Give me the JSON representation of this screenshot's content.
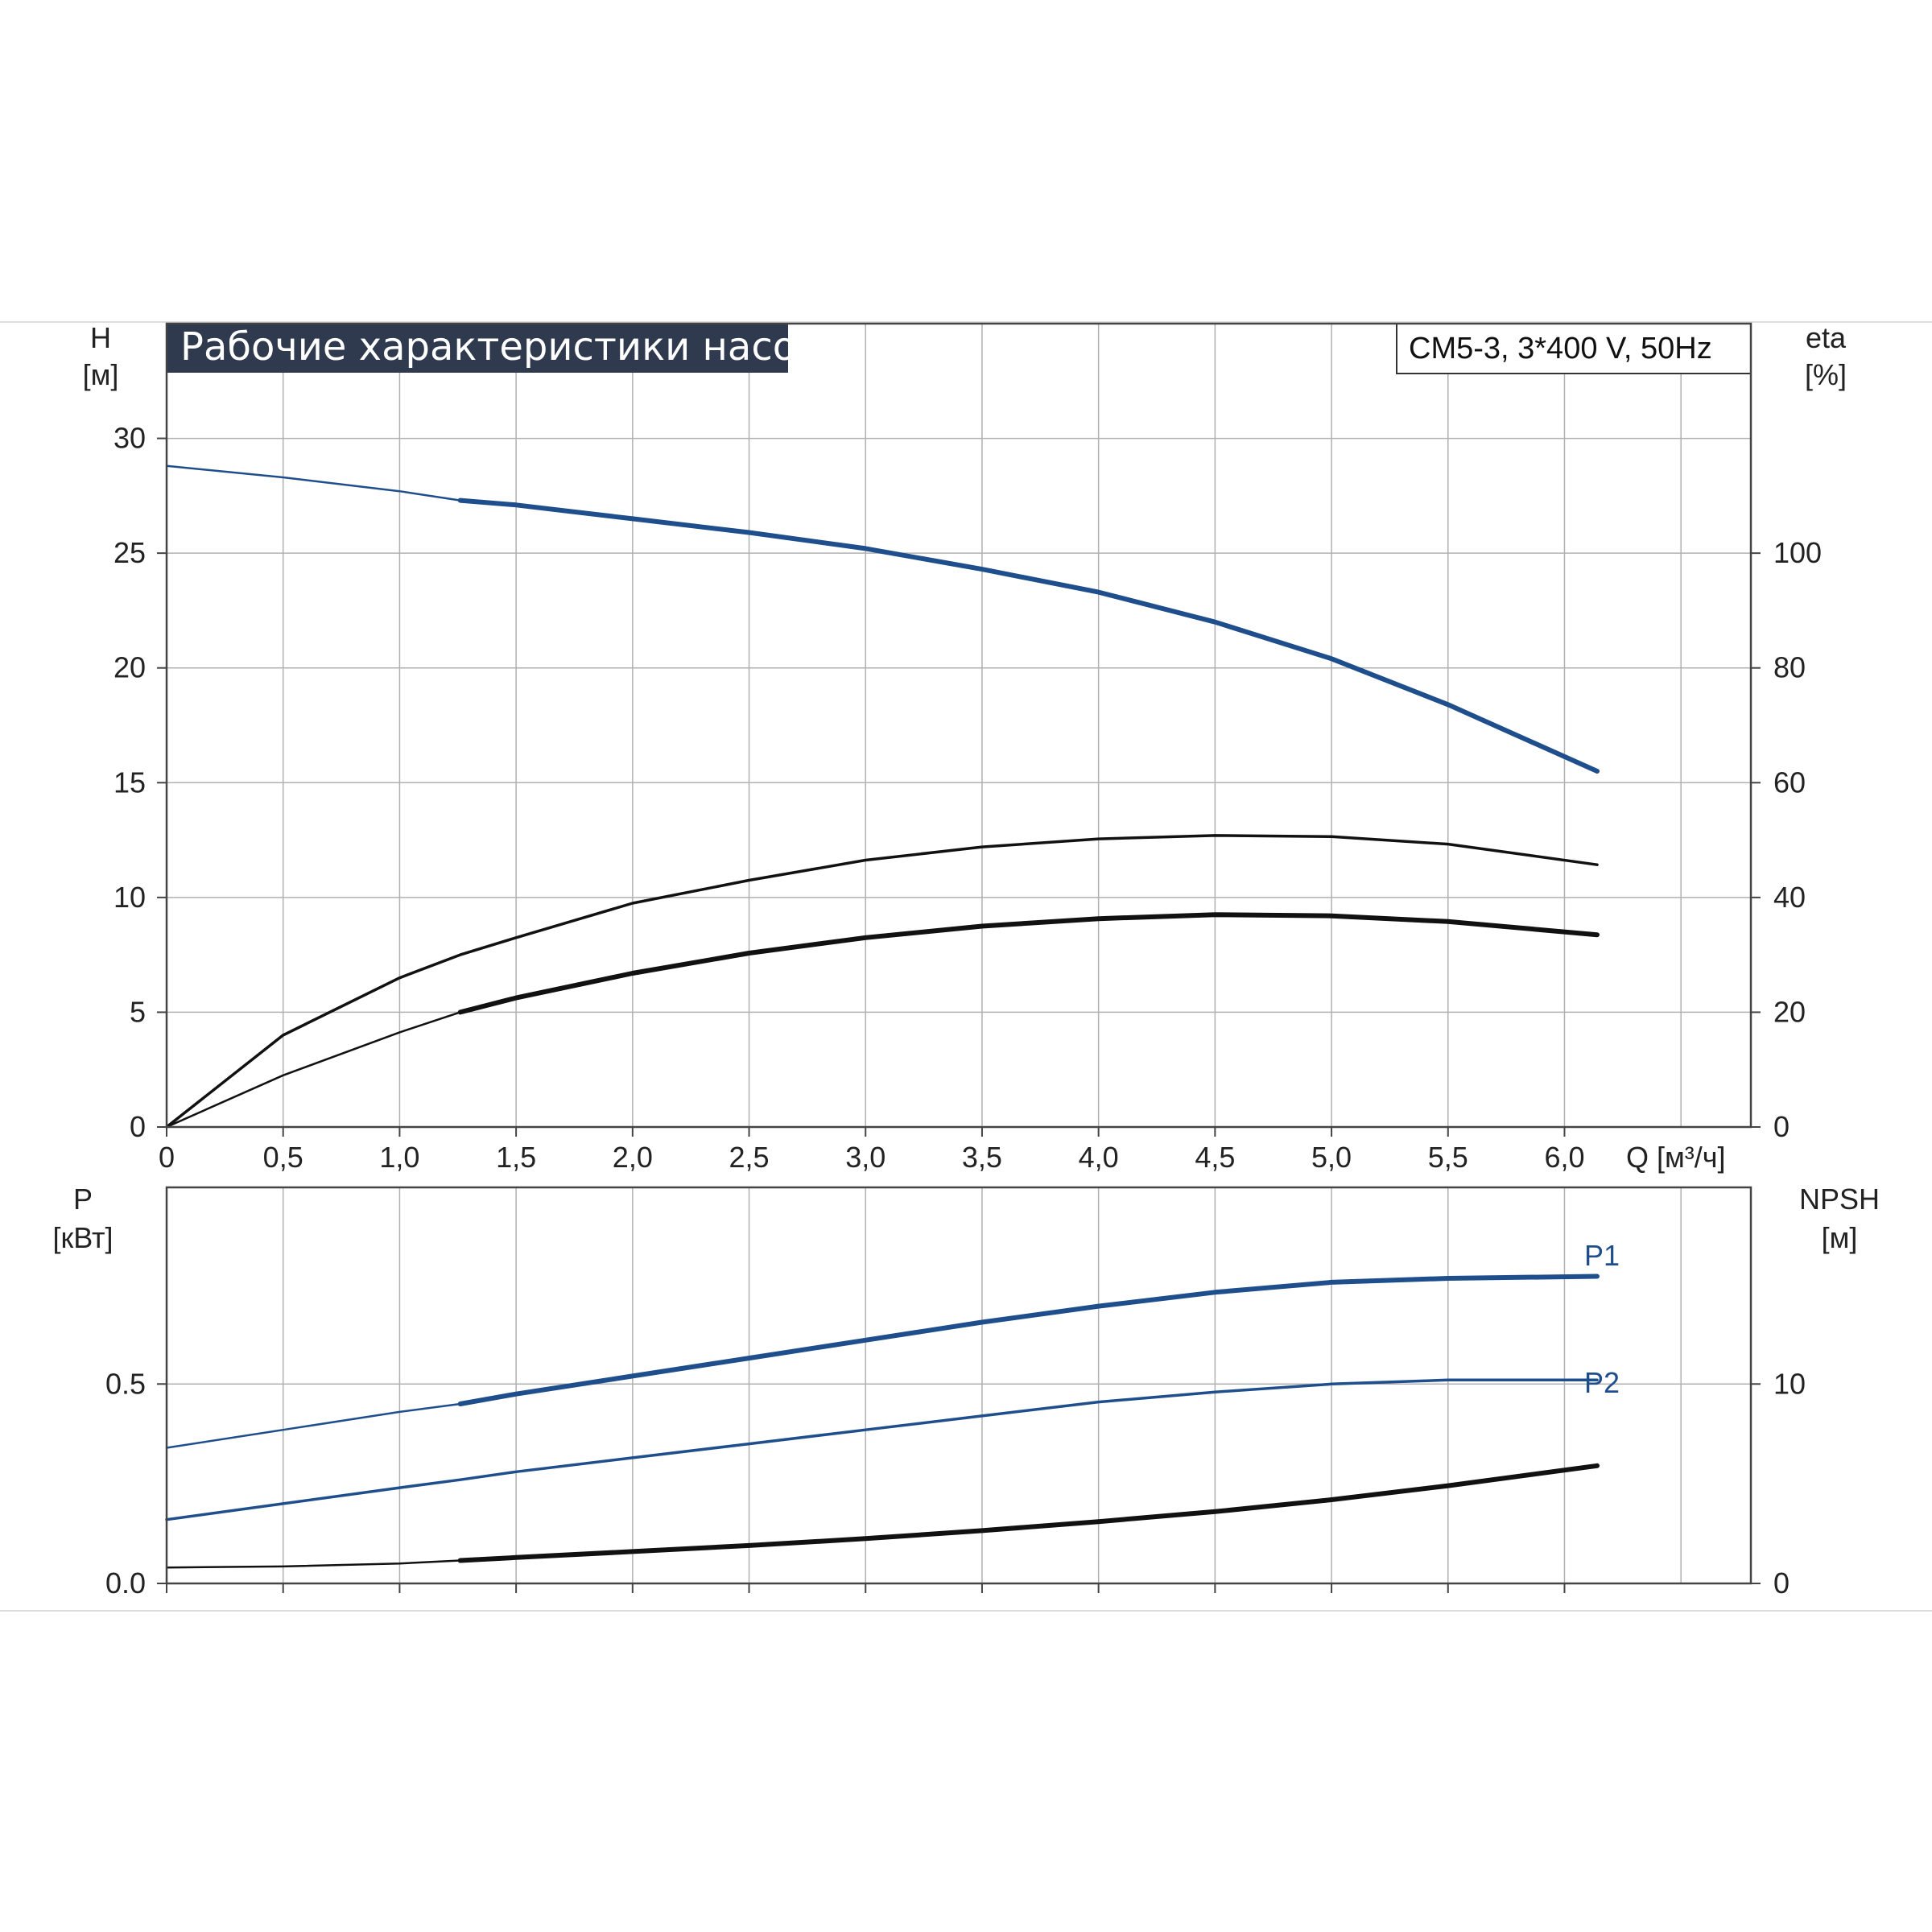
{
  "title": "Рабочие характеристики насоса",
  "model_label": "CM5-3, 3*400 V, 50Hz",
  "colors": {
    "blue": "#1f4e8c",
    "black": "#111111",
    "grid": "#b0b0b0",
    "title_bg": "#2f3a4f"
  },
  "chart_data": [
    {
      "type": "line",
      "name": "head-and-efficiency",
      "y_label_line1": "H",
      "y_label_line2": "[м]",
      "y2_label_line1": "eta",
      "y2_label_line2": "[%]",
      "x_axis_label": "Q [м³/ч]",
      "x_ticks": [
        0,
        0.5,
        1.0,
        1.5,
        2.0,
        2.5,
        3.0,
        3.5,
        4.0,
        4.5,
        5.0,
        5.5,
        6.0
      ],
      "x_tick_labels": [
        "0",
        "0,5",
        "1,0",
        "1,5",
        "2,0",
        "2,5",
        "3,0",
        "3,5",
        "4,0",
        "4,5",
        "5,0",
        "5,5",
        "6,0"
      ],
      "y_ticks": [
        0,
        5,
        10,
        15,
        20,
        25,
        30
      ],
      "y_tick_labels": [
        "0",
        "5",
        "10",
        "15",
        "20",
        "25",
        "30"
      ],
      "y2_ticks": [
        0,
        20,
        40,
        60,
        80,
        100
      ],
      "y2_tick_labels": [
        "0",
        "20",
        "40",
        "60",
        "80",
        "100"
      ],
      "xlim": [
        0,
        6.8
      ],
      "ylim": [
        0,
        35
      ],
      "y2lim": [
        0,
        140
      ],
      "grid": true,
      "series": [
        {
          "axis": "left",
          "color": "blue",
          "x": [
            0,
            0.5,
            1.0,
            1.26,
            1.5,
            2.0,
            2.5,
            3.0,
            3.5,
            4.0,
            4.5,
            5.0,
            5.5,
            6.14
          ],
          "values": [
            28.8,
            28.3,
            27.7,
            27.3,
            27.1,
            26.5,
            25.9,
            25.2,
            24.3,
            23.3,
            22.0,
            20.4,
            18.4,
            15.5
          ],
          "bold_from": 1.26
        },
        {
          "axis": "right",
          "color": "black",
          "x": [
            0,
            0.5,
            1.0,
            1.26,
            1.5,
            2.0,
            2.5,
            3.0,
            3.5,
            4.0,
            4.5,
            5.0,
            5.5,
            6.14
          ],
          "values": [
            0,
            16,
            26,
            30,
            33,
            39,
            43,
            46.5,
            48.8,
            50.2,
            50.8,
            50.6,
            49.3,
            45.7
          ],
          "bold_from": null
        },
        {
          "axis": "right",
          "color": "black",
          "x": [
            0,
            0.5,
            1.0,
            1.26,
            1.5,
            2.0,
            2.5,
            3.0,
            3.5,
            4.0,
            4.5,
            5.0,
            5.5,
            6.14
          ],
          "values": [
            0,
            9,
            16.5,
            20,
            22.5,
            26.8,
            30.3,
            33,
            35,
            36.3,
            37,
            36.8,
            35.8,
            33.5
          ],
          "bold_from": 1.26
        }
      ]
    },
    {
      "type": "line",
      "name": "power-and-npsh",
      "y_label_line1": "P",
      "y_label_line2": "[кВт]",
      "y2_label_line1": "NPSH",
      "y2_label_line2": "[м]",
      "x_ticks": [
        0,
        0.5,
        1.0,
        1.5,
        2.0,
        2.5,
        3.0,
        3.5,
        4.0,
        4.5,
        5.0,
        5.5,
        6.0
      ],
      "y_ticks": [
        0.0,
        0.5
      ],
      "y_tick_labels": [
        "0.0",
        "0.5"
      ],
      "y2_ticks": [
        0,
        10
      ],
      "y2_tick_labels": [
        "0",
        "10"
      ],
      "xlim": [
        0,
        6.8
      ],
      "ylim": [
        0,
        0.993
      ],
      "y2lim": [
        0,
        19.86
      ],
      "grid": true,
      "series": [
        {
          "name": "P1",
          "axis": "left",
          "color": "blue",
          "x": [
            0,
            0.5,
            1.0,
            1.26,
            1.5,
            2.0,
            2.5,
            3.0,
            3.5,
            4.0,
            4.5,
            5.0,
            5.5,
            6.14
          ],
          "values": [
            0.34,
            0.385,
            0.43,
            0.45,
            0.475,
            0.52,
            0.565,
            0.61,
            0.655,
            0.695,
            0.73,
            0.755,
            0.765,
            0.77
          ],
          "bold_from": 1.26
        },
        {
          "name": "P2",
          "axis": "left",
          "color": "blue",
          "x": [
            0,
            0.5,
            1.0,
            1.26,
            1.5,
            2.0,
            2.5,
            3.0,
            3.5,
            4.0,
            4.5,
            5.0,
            5.5,
            6.14
          ],
          "values": [
            0.16,
            0.2,
            0.24,
            0.26,
            0.28,
            0.315,
            0.35,
            0.385,
            0.42,
            0.455,
            0.48,
            0.5,
            0.51,
            0.51
          ],
          "bold_from": null
        },
        {
          "axis": "right",
          "color": "black",
          "x": [
            0,
            0.5,
            1.0,
            1.26,
            1.5,
            2.0,
            2.5,
            3.0,
            3.5,
            4.0,
            4.5,
            5.0,
            5.5,
            6.14
          ],
          "values": [
            0.8,
            0.85,
            1.0,
            1.15,
            1.3,
            1.6,
            1.9,
            2.25,
            2.65,
            3.1,
            3.6,
            4.2,
            4.9,
            5.9
          ],
          "bold_from": 1.26
        }
      ]
    }
  ]
}
